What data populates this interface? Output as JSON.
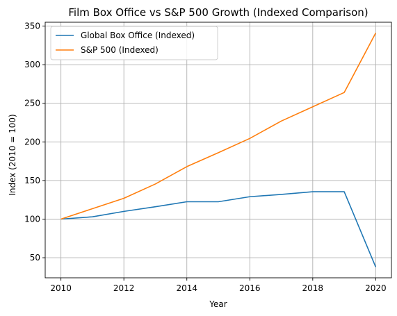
{
  "chart_data": {
    "type": "line",
    "title": "Film Box Office vs S&P 500 Growth (Indexed Comparison)",
    "xlabel": "Year",
    "ylabel": "Index (2010 = 100)",
    "x": [
      2010,
      2011,
      2012,
      2013,
      2014,
      2015,
      2016,
      2017,
      2018,
      2019,
      2020
    ],
    "xlim": [
      2009.5,
      2020.5
    ],
    "ylim": [
      24,
      355
    ],
    "xticks": [
      2010,
      2012,
      2014,
      2016,
      2018,
      2020
    ],
    "yticks": [
      50,
      100,
      150,
      200,
      250,
      300,
      350
    ],
    "grid": true,
    "legend_position": "top-left",
    "series": [
      {
        "name": "Global Box Office (Indexed)",
        "color": "#1f77b4",
        "values": [
          100,
          103,
          110,
          116,
          122.5,
          122.5,
          129,
          132,
          135.5,
          135.5,
          38
        ]
      },
      {
        "name": "S&P 500 (Indexed)",
        "color": "#ff7f0e",
        "values": [
          100,
          113.5,
          127,
          145.5,
          168,
          186,
          204.5,
          227,
          245.5,
          264,
          341
        ]
      }
    ]
  }
}
